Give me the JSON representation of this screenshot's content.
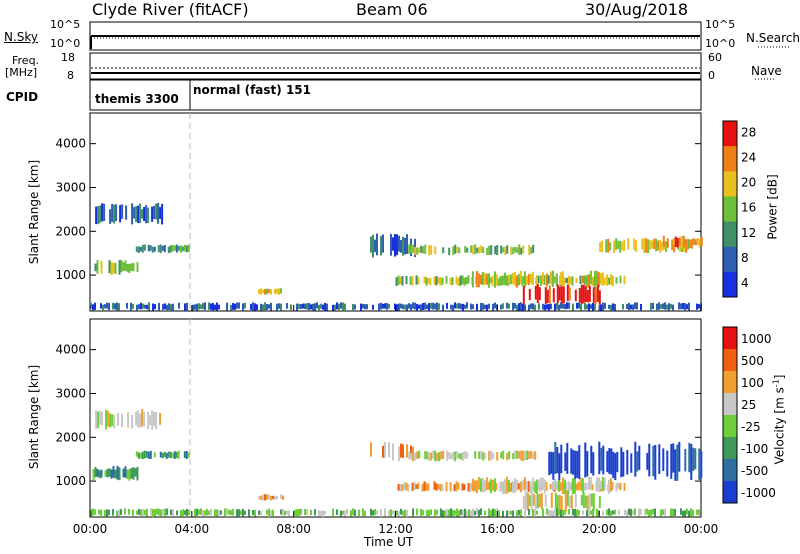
{
  "header": {
    "station": "Clyde River (fitACF)",
    "beam": "Beam 06",
    "date": "30/Aug/2018"
  },
  "panels": {
    "nsky_label": "N.Sky",
    "nsearch_label": "N.Search",
    "count_ticks": [
      "10^5",
      "10^0"
    ],
    "freq_label_1": "Freq.",
    "freq_label_2": "[MHz]",
    "freq_ticks": [
      "18",
      "8"
    ],
    "nave_label": "Nave",
    "nave_ticks": [
      "60",
      "0"
    ],
    "cpid_label": "CPID",
    "cpid_segments": [
      "themis 3300",
      "normal (fast) 151"
    ]
  },
  "chart_data": [
    {
      "type": "heatmap",
      "name": "power",
      "title": "",
      "xlabel": "Time UT",
      "ylabel": "Slant Range [km]",
      "x_ticks": [
        "00:00",
        "04:00",
        "08:00",
        "12:00",
        "16:00",
        "20:00",
        "00:00"
      ],
      "xlim_hours": [
        0,
        24
      ],
      "y_ticks": [
        1000,
        2000,
        3000,
        4000
      ],
      "ylim": [
        180,
        4700
      ],
      "colorbar_label": "Power [dB]",
      "colorbar_ticks": [
        4,
        8,
        12,
        16,
        20,
        24,
        28
      ],
      "colorbar_colors": [
        "#1a2fe0",
        "#2f5fb0",
        "#3f8f6a",
        "#6fbf3a",
        "#e8c020",
        "#f08018",
        "#e81010"
      ],
      "blobs": [
        {
          "t": [
            0.2,
            2.8
          ],
          "r": [
            2150,
            2650
          ],
          "level": 1
        },
        {
          "t": [
            0.1,
            1.9
          ],
          "r": [
            1000,
            1350
          ],
          "level": 3
        },
        {
          "t": [
            1.8,
            3.9
          ],
          "r": [
            1500,
            1700
          ],
          "level": 2
        },
        {
          "t": [
            6.6,
            7.6
          ],
          "r": [
            550,
            700
          ],
          "level": 4
        },
        {
          "t": [
            11.0,
            12.8
          ],
          "r": [
            1400,
            1950
          ],
          "level": 1
        },
        {
          "t": [
            12.5,
            17.5
          ],
          "r": [
            1450,
            1700
          ],
          "level": 3
        },
        {
          "t": [
            12.0,
            21.0
          ],
          "r": [
            750,
            1000
          ],
          "level": 3
        },
        {
          "t": [
            15.0,
            20.5
          ],
          "r": [
            700,
            1100
          ],
          "level": 4
        },
        {
          "t": [
            17.0,
            20.0
          ],
          "r": [
            300,
            800
          ],
          "level": 6
        },
        {
          "t": [
            20.0,
            23.5
          ],
          "r": [
            1500,
            1850
          ],
          "level": 4
        },
        {
          "t": [
            22.5,
            24.0
          ],
          "r": [
            1600,
            1900
          ],
          "level": 5
        },
        {
          "t": [
            0.0,
            24.0
          ],
          "r": [
            180,
            380
          ],
          "level": 1
        }
      ]
    },
    {
      "type": "heatmap",
      "name": "velocity",
      "title": "",
      "xlabel": "Time UT",
      "ylabel": "Slant Range [km]",
      "x_ticks": [
        "00:00",
        "04:00",
        "08:00",
        "12:00",
        "16:00",
        "20:00",
        "00:00"
      ],
      "xlim_hours": [
        0,
        24
      ],
      "y_ticks": [
        1000,
        2000,
        3000,
        4000
      ],
      "ylim": [
        180,
        4700
      ],
      "colorbar_label": "Velocity [m s^-1]",
      "colorbar_ticks": [
        "1000",
        "500",
        "100",
        "25",
        "-25",
        "-100",
        "-500",
        "-1000"
      ],
      "colorbar_colors": [
        "#1a3fd0",
        "#2f6fa0",
        "#3f9a5a",
        "#6fcf3a",
        "#c8c8c8",
        "#f0a030",
        "#f06010",
        "#e81010"
      ],
      "blobs": [
        {
          "t": [
            0.2,
            2.8
          ],
          "r": [
            2150,
            2650
          ],
          "level": 4
        },
        {
          "t": [
            0.1,
            1.9
          ],
          "r": [
            1000,
            1350
          ],
          "level": 2
        },
        {
          "t": [
            1.8,
            3.9
          ],
          "r": [
            1500,
            1700
          ],
          "level": 2
        },
        {
          "t": [
            6.6,
            7.6
          ],
          "r": [
            550,
            700
          ],
          "level": 5
        },
        {
          "t": [
            11.0,
            12.8
          ],
          "r": [
            1400,
            1950
          ],
          "level": 5
        },
        {
          "t": [
            12.5,
            17.5
          ],
          "r": [
            1450,
            1700
          ],
          "level": 4
        },
        {
          "t": [
            12.0,
            21.0
          ],
          "r": [
            750,
            1000
          ],
          "level": 5
        },
        {
          "t": [
            15.0,
            20.5
          ],
          "r": [
            700,
            1100
          ],
          "level": 4
        },
        {
          "t": [
            17.0,
            20.0
          ],
          "r": [
            300,
            800
          ],
          "level": 4
        },
        {
          "t": [
            18.0,
            24.0
          ],
          "r": [
            1000,
            1900
          ],
          "level": 0
        },
        {
          "t": [
            0.0,
            24.0
          ],
          "r": [
            180,
            380
          ],
          "level": 3
        }
      ]
    }
  ]
}
